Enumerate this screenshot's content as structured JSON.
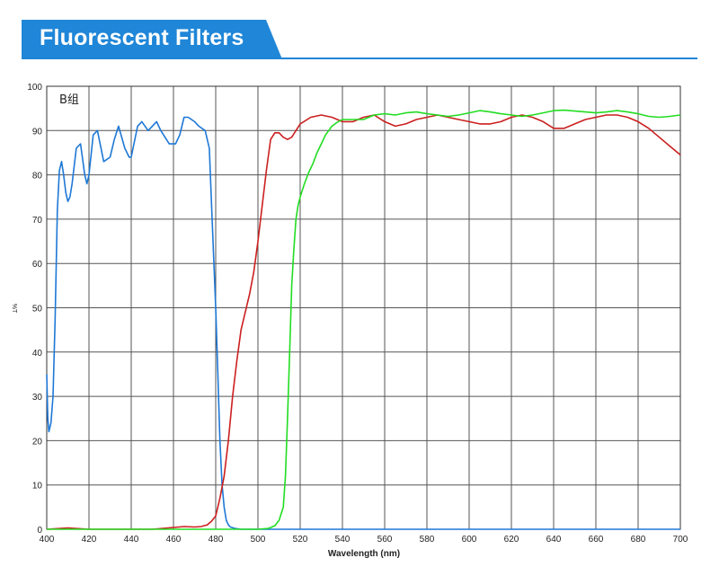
{
  "header": {
    "title": "Fluorescent Filters"
  },
  "colors": {
    "banner": "#1f86d8",
    "grid": "#555555",
    "series": [
      "#1e78d6",
      "#cc1f1f",
      "#22dd22"
    ]
  },
  "chart_data": {
    "type": "line",
    "title": "",
    "annotation": "B组",
    "xlabel": "Wavelength (nm)",
    "ylabel": "%T",
    "xlim": [
      400,
      700
    ],
    "ylim": [
      0,
      100
    ],
    "xticks": [
      400,
      420,
      440,
      460,
      480,
      500,
      520,
      540,
      560,
      580,
      600,
      620,
      640,
      660,
      680,
      700
    ],
    "yticks": [
      0,
      10,
      20,
      30,
      40,
      50,
      60,
      70,
      80,
      90,
      100
    ],
    "grid": true,
    "legend": "none",
    "series": [
      {
        "color": "#1e78d6",
        "x": [
          400,
          400.5,
          401,
          402,
          403,
          404,
          405,
          406,
          407,
          408,
          409,
          410,
          411,
          412,
          414,
          416,
          418,
          419,
          420,
          422,
          424,
          427,
          430,
          432,
          434,
          437,
          439,
          440,
          443,
          445,
          448,
          450,
          452,
          454,
          458,
          461,
          463,
          465,
          467,
          470,
          472,
          475,
          477,
          479,
          480,
          481,
          482,
          483,
          484,
          485,
          486,
          487,
          489,
          492,
          500,
          560,
          640,
          700
        ],
        "y": [
          35,
          25,
          22,
          24,
          30,
          48,
          72,
          81,
          83,
          80,
          76,
          74,
          75,
          78,
          86,
          87,
          80,
          78,
          80,
          89,
          90,
          83,
          84,
          88,
          91,
          86,
          84,
          84,
          91,
          92,
          90,
          91,
          92,
          90,
          87,
          87,
          89,
          93,
          93,
          92,
          91,
          90,
          86,
          62,
          50,
          35,
          20,
          10,
          5,
          2,
          1,
          0.5,
          0.2,
          0,
          0,
          0,
          0,
          0
        ]
      },
      {
        "color": "#cc1f1f",
        "x": [
          400,
          410,
          420,
          450,
          455,
          460,
          465,
          470,
          473,
          476,
          478,
          480,
          482,
          484,
          486,
          488,
          490,
          492,
          494,
          496,
          498,
          500,
          502,
          504,
          506,
          508,
          510,
          512,
          514,
          516,
          518,
          520,
          525,
          530,
          535,
          540,
          545,
          550,
          555,
          560,
          565,
          570,
          575,
          580,
          585,
          590,
          595,
          600,
          605,
          610,
          615,
          620,
          625,
          630,
          635,
          640,
          645,
          650,
          655,
          660,
          665,
          670,
          675,
          680,
          685,
          690,
          695,
          700
        ],
        "y": [
          0,
          0.3,
          0,
          0,
          0.2,
          0.4,
          0.6,
          0.5,
          0.6,
          1,
          1.8,
          3,
          7,
          12,
          20,
          30,
          38,
          45,
          49,
          53,
          58,
          65,
          73,
          81,
          88,
          89.5,
          89.5,
          88.5,
          88,
          88.5,
          90,
          91.5,
          93,
          93.5,
          93,
          92,
          92,
          93,
          93.5,
          92,
          91,
          91.5,
          92.5,
          93,
          93.5,
          93,
          92.5,
          92,
          91.5,
          91.5,
          92,
          93,
          93.5,
          93,
          92,
          90.5,
          90.5,
          91.5,
          92.5,
          93,
          93.5,
          93.5,
          93,
          92,
          90.5,
          88.5,
          86.5,
          84.5
        ]
      },
      {
        "color": "#22dd22",
        "x": [
          400,
          500,
          505,
          508,
          510,
          512,
          513,
          514,
          515,
          516,
          517,
          518,
          519,
          520,
          522,
          524,
          526,
          528,
          530,
          532,
          535,
          538,
          540,
          545,
          550,
          555,
          560,
          565,
          570,
          575,
          580,
          585,
          590,
          595,
          600,
          605,
          610,
          615,
          620,
          625,
          630,
          635,
          640,
          645,
          650,
          655,
          660,
          665,
          670,
          675,
          680,
          685,
          690,
          695,
          700
        ],
        "y": [
          0,
          0,
          0.2,
          0.8,
          2,
          5,
          12,
          25,
          40,
          55,
          63,
          70,
          73,
          75,
          78,
          80.5,
          82.5,
          85,
          87,
          89,
          91,
          92,
          92.5,
          92.5,
          92.5,
          93.5,
          93.8,
          93.5,
          94,
          94.2,
          93.8,
          93.5,
          93.2,
          93.5,
          94,
          94.5,
          94.2,
          93.8,
          93.5,
          93.2,
          93.5,
          94,
          94.5,
          94.6,
          94.4,
          94.2,
          94,
          94.2,
          94.5,
          94.2,
          93.8,
          93.2,
          93,
          93.2,
          93.5
        ]
      }
    ]
  }
}
